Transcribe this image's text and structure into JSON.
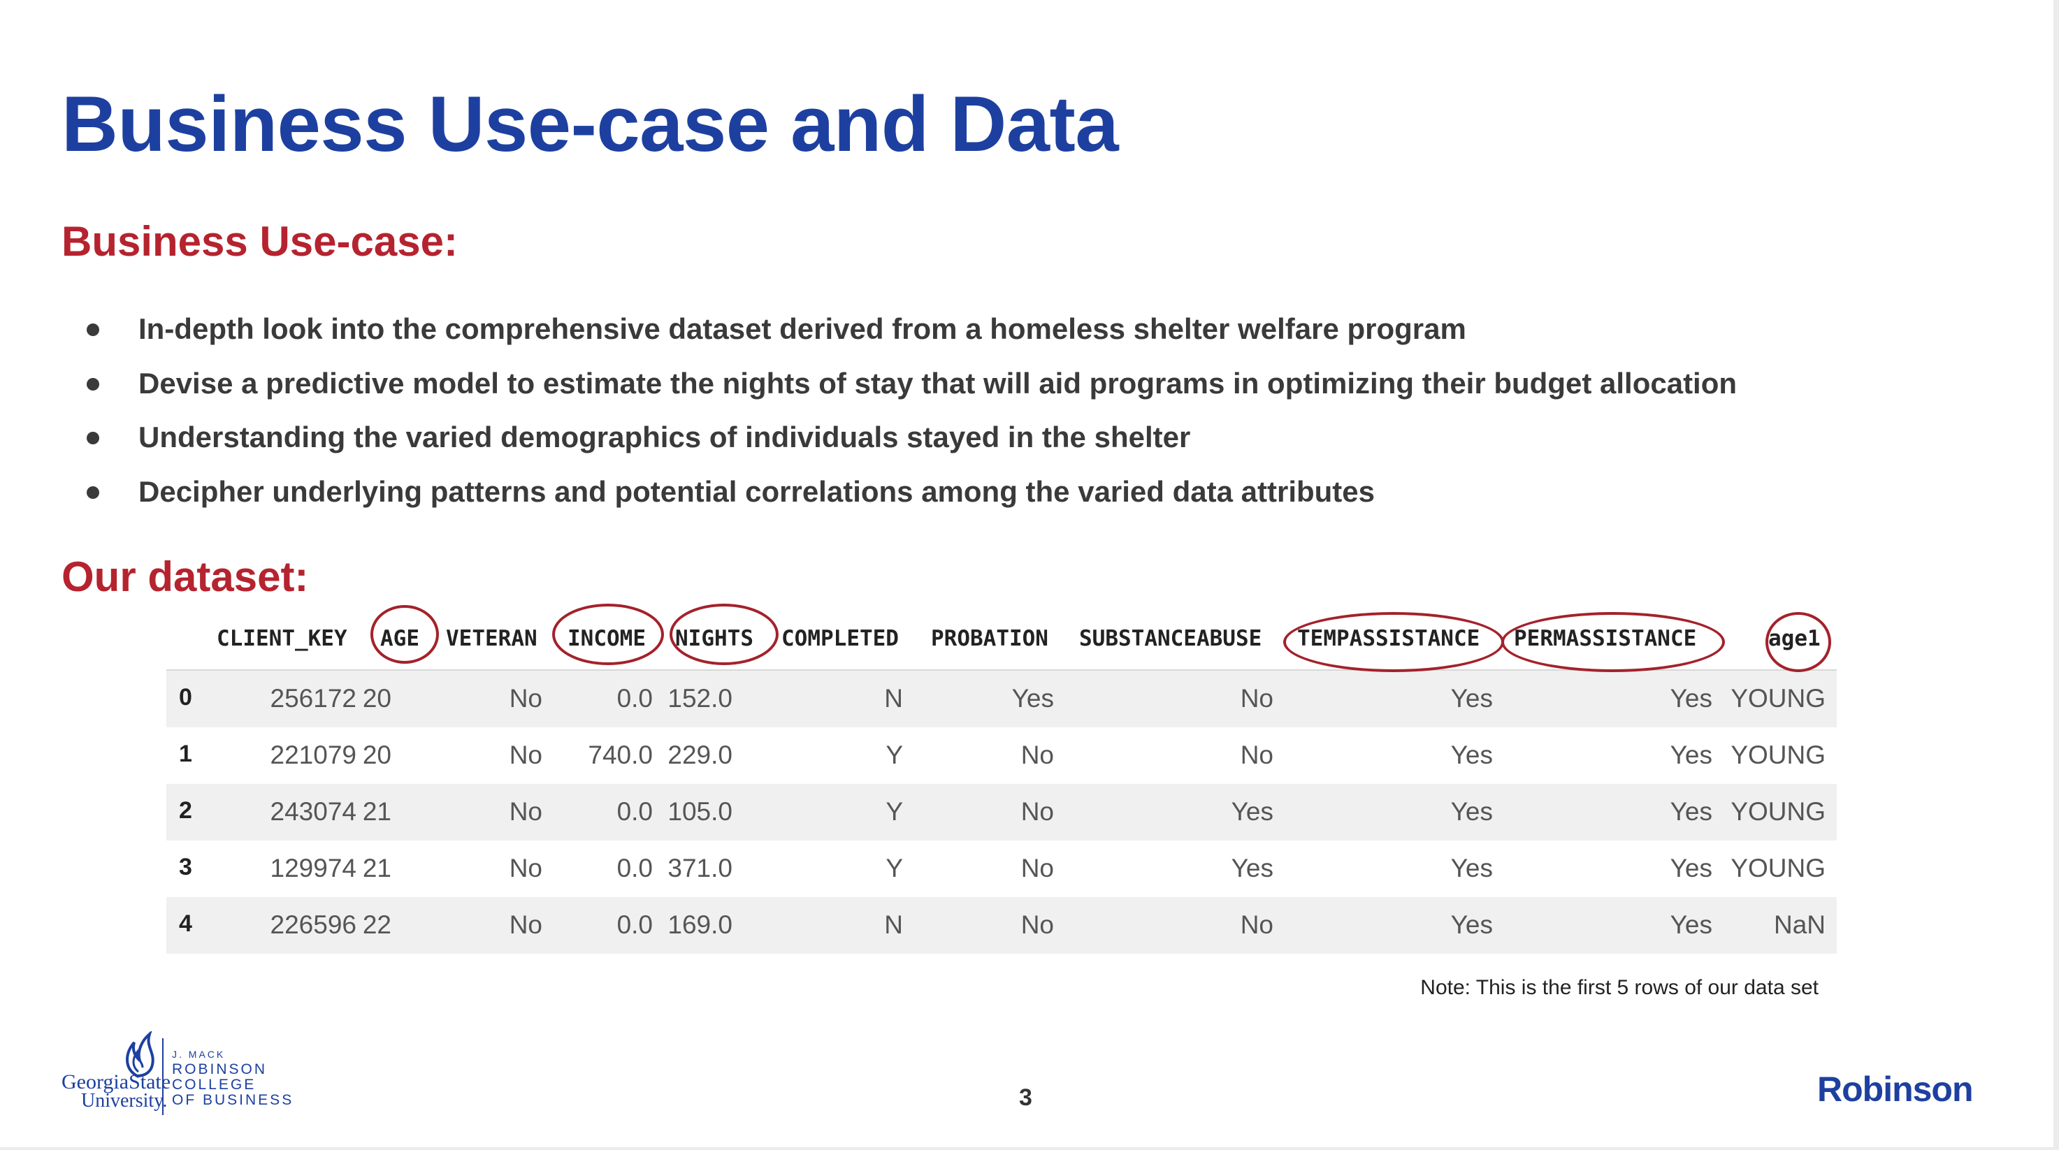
{
  "slide": {
    "title": "Business Use-case and Data",
    "use_case_heading": "Business Use-case:",
    "bullets": [
      "In-depth look into the comprehensive dataset derived from a homeless shelter welfare program",
      "Devise a predictive model to estimate the nights of stay that will aid programs in optimizing their budget allocation",
      "Understanding the varied demographics of individuals stayed in the shelter",
      "Decipher underlying patterns and potential correlations among the varied data attributes"
    ],
    "dataset_heading": "Our dataset:",
    "note": "Note: This is the first 5 rows of our data set",
    "page_number": "3",
    "brand": "Robinson"
  },
  "logo": {
    "line1": "Georgia",
    "line1b": "State",
    "line2": "University.",
    "college_1": "J. MACK",
    "college_2": "ROBINSON",
    "college_3": "COLLEGE",
    "college_4": "OF BUSINESS"
  },
  "table": {
    "columns": [
      "CLIENT_KEY",
      "AGE",
      "VETERAN",
      "INCOME",
      "NIGHTS",
      "COMPLETED",
      "PROBATION",
      "SUBSTANCEABUSE",
      "TEMPASSISTANCE",
      "PERMASSISTANCE",
      "age1"
    ],
    "highlighted_columns": [
      "AGE",
      "INCOME",
      "NIGHTS",
      "TEMPASSISTANCE",
      "PERMASSISTANCE",
      "age1"
    ],
    "rows": [
      {
        "index": "0",
        "cells": [
          "256172",
          "20",
          "No",
          "0.0",
          "152.0",
          "N",
          "Yes",
          "No",
          "Yes",
          "Yes",
          "YOUNG"
        ]
      },
      {
        "index": "1",
        "cells": [
          "221079",
          "20",
          "No",
          "740.0",
          "229.0",
          "Y",
          "No",
          "No",
          "Yes",
          "Yes",
          "YOUNG"
        ]
      },
      {
        "index": "2",
        "cells": [
          "243074",
          "21",
          "No",
          "0.0",
          "105.0",
          "Y",
          "No",
          "Yes",
          "Yes",
          "Yes",
          "YOUNG"
        ]
      },
      {
        "index": "3",
        "cells": [
          "129974",
          "21",
          "No",
          "0.0",
          "371.0",
          "Y",
          "No",
          "Yes",
          "Yes",
          "Yes",
          "YOUNG"
        ]
      },
      {
        "index": "4",
        "cells": [
          "226596",
          "22",
          "No",
          "0.0",
          "169.0",
          "N",
          "No",
          "No",
          "Yes",
          "Yes",
          "NaN"
        ]
      }
    ]
  },
  "colors": {
    "title_blue": "#1d40a0",
    "heading_red": "#b5232f",
    "circle_red": "#a3222b"
  }
}
